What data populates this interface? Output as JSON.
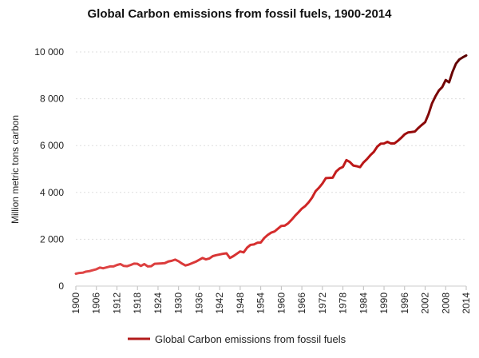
{
  "chart_data": {
    "type": "line",
    "title": "Global Carbon emissions from fossil fuels, 1900-2014",
    "xlabel": "",
    "ylabel": "Million metric tons carbon",
    "xlim": [
      1900,
      2014
    ],
    "ylim": [
      0,
      10000
    ],
    "yticks": [
      0,
      2000,
      4000,
      6000,
      8000,
      10000
    ],
    "ytick_labels": [
      "0",
      "2 000",
      "4 000",
      "6 000",
      "8 000",
      "10 000"
    ],
    "xticks": [
      1900,
      1906,
      1912,
      1918,
      1924,
      1930,
      1936,
      1942,
      1948,
      1954,
      1960,
      1966,
      1972,
      1978,
      1984,
      1990,
      1996,
      2002,
      2008,
      2014
    ],
    "xtick_labels": [
      "1900",
      "1906",
      "1912",
      "1918",
      "1924",
      "1930",
      "1936",
      "1942",
      "1948",
      "1954",
      "1960",
      "1966",
      "1972",
      "1978",
      "1984",
      "1990",
      "1996",
      "2002",
      "2008",
      "2014"
    ],
    "grid": "horizontal",
    "legend_position": "bottom-center",
    "series": [
      {
        "name": "Global Carbon emissions from fossil fuels",
        "color_start": "#e04848",
        "color_end": "#5a0000",
        "x": [
          1900,
          1901,
          1902,
          1903,
          1904,
          1905,
          1906,
          1907,
          1908,
          1909,
          1910,
          1911,
          1912,
          1913,
          1914,
          1915,
          1916,
          1917,
          1918,
          1919,
          1920,
          1921,
          1922,
          1923,
          1924,
          1925,
          1926,
          1927,
          1928,
          1929,
          1930,
          1931,
          1932,
          1933,
          1934,
          1935,
          1936,
          1937,
          1938,
          1939,
          1940,
          1941,
          1942,
          1943,
          1944,
          1945,
          1946,
          1947,
          1948,
          1949,
          1950,
          1951,
          1952,
          1953,
          1954,
          1955,
          1956,
          1957,
          1958,
          1959,
          1960,
          1961,
          1962,
          1963,
          1964,
          1965,
          1966,
          1967,
          1968,
          1969,
          1970,
          1971,
          1972,
          1973,
          1974,
          1975,
          1976,
          1977,
          1978,
          1979,
          1980,
          1981,
          1982,
          1983,
          1984,
          1985,
          1986,
          1987,
          1988,
          1989,
          1990,
          1991,
          1992,
          1993,
          1994,
          1995,
          1996,
          1997,
          1998,
          1999,
          2000,
          2001,
          2002,
          2003,
          2004,
          2005,
          2006,
          2007,
          2008,
          2009,
          2010,
          2011,
          2012,
          2013,
          2014
        ],
        "values": [
          530,
          560,
          570,
          620,
          640,
          680,
          720,
          790,
          760,
          800,
          840,
          840,
          900,
          940,
          860,
          850,
          900,
          960,
          950,
          860,
          940,
          840,
          850,
          950,
          960,
          970,
          980,
          1050,
          1080,
          1130,
          1060,
          960,
          880,
          920,
          980,
          1040,
          1120,
          1200,
          1140,
          1180,
          1280,
          1320,
          1350,
          1380,
          1400,
          1200,
          1280,
          1380,
          1480,
          1440,
          1640,
          1760,
          1780,
          1850,
          1860,
          2050,
          2180,
          2280,
          2330,
          2450,
          2570,
          2580,
          2680,
          2830,
          3000,
          3150,
          3310,
          3420,
          3580,
          3780,
          4050,
          4200,
          4380,
          4610,
          4620,
          4630,
          4890,
          5020,
          5090,
          5380,
          5300,
          5150,
          5120,
          5080,
          5280,
          5420,
          5590,
          5730,
          5950,
          6080,
          6090,
          6160,
          6090,
          6090,
          6200,
          6330,
          6480,
          6560,
          6580,
          6600,
          6750,
          6880,
          7000,
          7350,
          7800,
          8100,
          8350,
          8500,
          8800,
          8700,
          9150,
          9500,
          9680,
          9770,
          9850
        ]
      }
    ]
  }
}
